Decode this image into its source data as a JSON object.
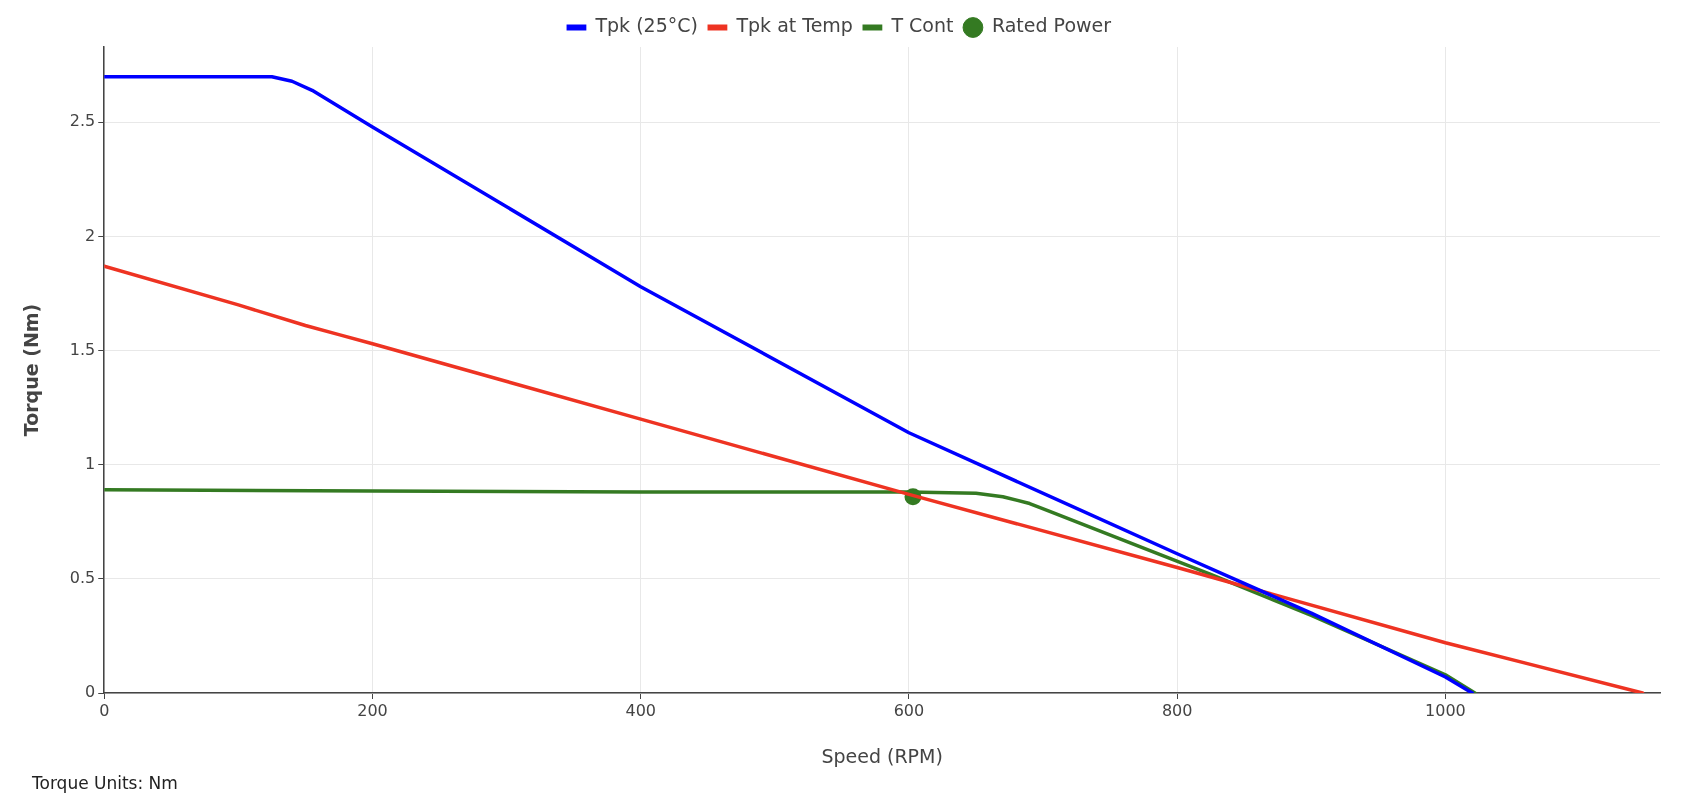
{
  "chart_data": {
    "type": "line",
    "xlabel": "Speed (RPM)",
    "ylabel": "Torque (Nm)",
    "xlim": [
      0,
      1160
    ],
    "ylim": [
      0,
      2.83
    ],
    "xticks": [
      0,
      200,
      400,
      600,
      800,
      1000
    ],
    "yticks": [
      0,
      0.5,
      1,
      1.5,
      2,
      2.5
    ],
    "grid": true,
    "legend": "top",
    "line_style": "solid",
    "marker": "none",
    "annotations": [
      "Torque Units: Nm"
    ],
    "series": [
      {
        "name": "Tpk (25°C)",
        "color": "#0000ff",
        "x": [
          0,
          110,
          125,
          140,
          155,
          200,
          400,
          600,
          800,
          900,
          1000,
          1020
        ],
        "values": [
          2.7,
          2.7,
          2.7,
          2.68,
          2.64,
          2.48,
          1.78,
          1.14,
          0.61,
          0.35,
          0.07,
          0
        ]
      },
      {
        "name": "Tpk at Temp",
        "color": "#ee3322",
        "x": [
          0,
          100,
          150,
          175,
          200,
          400,
          600,
          800,
          1000,
          1147
        ],
        "values": [
          1.87,
          1.7,
          1.61,
          1.57,
          1.53,
          1.2,
          0.87,
          0.55,
          0.22,
          0
        ]
      },
      {
        "name": "T Cont",
        "color": "#347a22",
        "x": [
          0,
          200,
          400,
          600,
          650,
          670,
          690,
          825,
          900,
          1000,
          1022
        ],
        "values": [
          0.89,
          0.885,
          0.88,
          0.88,
          0.875,
          0.86,
          0.83,
          0.52,
          0.34,
          0.08,
          0
        ]
      },
      {
        "name": "Rated Power",
        "type": "scatter",
        "marker": "circle",
        "color": "#347a22",
        "x": [
          603
        ],
        "values": [
          0.86
        ]
      }
    ]
  }
}
